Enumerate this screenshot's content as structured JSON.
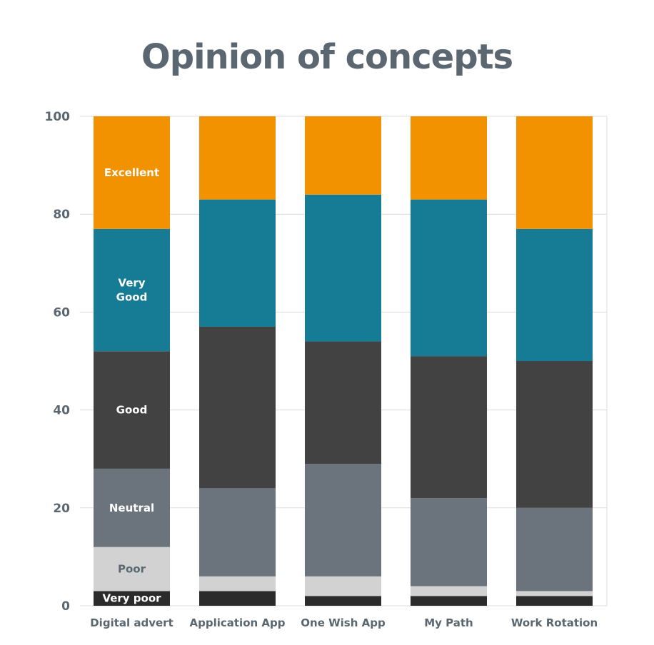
{
  "chart_data": {
    "type": "bar",
    "stacked": true,
    "title": "Opinion of concepts",
    "xlabel": "",
    "ylabel": "",
    "ylim": [
      0,
      100
    ],
    "yticks": [
      0,
      20,
      40,
      60,
      80,
      100
    ],
    "grid": true,
    "categories": [
      "Digital advert",
      "Application App",
      "One Wish App",
      "My Path",
      "Work Rotation"
    ],
    "series": [
      {
        "name": "Very poor",
        "color": "#2b2b2b",
        "label_color": "#ffffff",
        "values": [
          3,
          3,
          2,
          2,
          2
        ]
      },
      {
        "name": "Poor",
        "color": "#d2d2d2",
        "label_color": "#5b6770",
        "values": [
          9,
          3,
          4,
          2,
          1
        ]
      },
      {
        "name": "Neutral",
        "color": "#6b747c",
        "label_color": "#ffffff",
        "values": [
          16,
          18,
          23,
          18,
          17
        ]
      },
      {
        "name": "Good",
        "color": "#424242",
        "label_color": "#ffffff",
        "values": [
          24,
          33,
          25,
          29,
          30
        ]
      },
      {
        "name": "Very\nGood",
        "color": "#167c95",
        "label_color": "#ffffff",
        "values": [
          25,
          26,
          30,
          32,
          27
        ]
      },
      {
        "name": "Excellent",
        "color": "#f39200",
        "label_color": "#ffffff",
        "values": [
          23,
          17,
          16,
          17,
          23
        ]
      }
    ],
    "labeled_category_index": 0
  }
}
